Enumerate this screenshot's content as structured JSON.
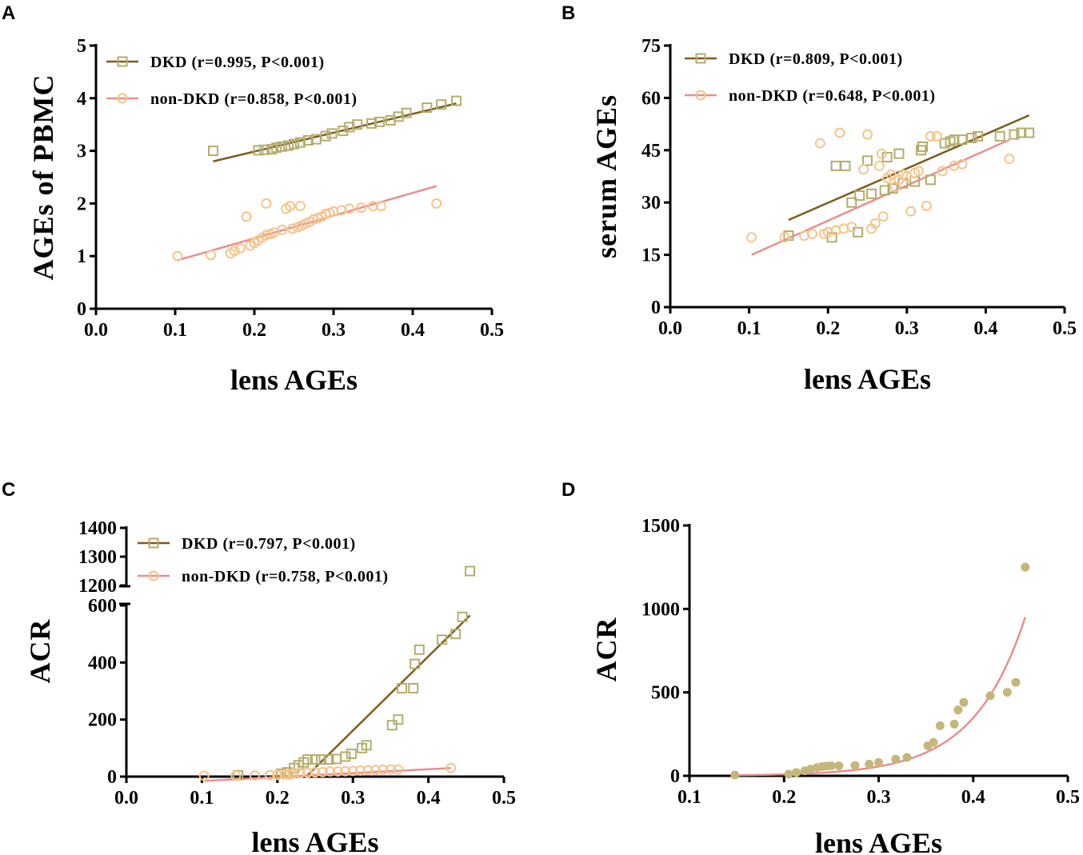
{
  "colors": {
    "dkd_marker": "#b5ad6e",
    "dkd_line": "#7d5c1c",
    "nondkd_marker": "#f6c48c",
    "nondkd_line": "#ea8e8e",
    "filled_marker": "#c4b77a"
  },
  "chart_data": [
    {
      "panel": "A",
      "type": "scatter",
      "title": "",
      "xlabel": "lens AGEs",
      "ylabel": "AGEs of PBMC",
      "xlim": [
        0.0,
        0.5
      ],
      "ylim": [
        0,
        5
      ],
      "xticks": [
        "0.0",
        "0.1",
        "0.2",
        "0.3",
        "0.4",
        "0.5"
      ],
      "yticks": [
        "0",
        "1",
        "2",
        "3",
        "4",
        "5"
      ],
      "legend_position": "top-left",
      "series": [
        {
          "name": "DKD (r=0.995, P<0.001)",
          "marker": "open-square",
          "points": [
            [
              0.148,
              3.0
            ],
            [
              0.205,
              3.01
            ],
            [
              0.213,
              3.02
            ],
            [
              0.222,
              3.03
            ],
            [
              0.228,
              3.06
            ],
            [
              0.235,
              3.08
            ],
            [
              0.243,
              3.1
            ],
            [
              0.25,
              3.13
            ],
            [
              0.258,
              3.16
            ],
            [
              0.268,
              3.2
            ],
            [
              0.278,
              3.22
            ],
            [
              0.29,
              3.28
            ],
            [
              0.298,
              3.33
            ],
            [
              0.312,
              3.38
            ],
            [
              0.32,
              3.45
            ],
            [
              0.33,
              3.5
            ],
            [
              0.348,
              3.52
            ],
            [
              0.358,
              3.55
            ],
            [
              0.372,
              3.58
            ],
            [
              0.382,
              3.65
            ],
            [
              0.392,
              3.72
            ],
            [
              0.418,
              3.82
            ],
            [
              0.436,
              3.88
            ],
            [
              0.455,
              3.95
            ]
          ],
          "fit": [
            [
              0.148,
              2.8
            ],
            [
              0.455,
              3.9
            ]
          ]
        },
        {
          "name": "non-DKD (r=0.858, P<0.001)",
          "marker": "open-circle",
          "points": [
            [
              0.103,
              1.0
            ],
            [
              0.145,
              1.02
            ],
            [
              0.17,
              1.05
            ],
            [
              0.175,
              1.1
            ],
            [
              0.182,
              1.15
            ],
            [
              0.19,
              1.75
            ],
            [
              0.195,
              1.2
            ],
            [
              0.2,
              1.25
            ],
            [
              0.205,
              1.3
            ],
            [
              0.21,
              1.35
            ],
            [
              0.215,
              1.4
            ],
            [
              0.215,
              2.0
            ],
            [
              0.22,
              1.42
            ],
            [
              0.225,
              1.45
            ],
            [
              0.235,
              1.5
            ],
            [
              0.24,
              1.9
            ],
            [
              0.245,
              1.95
            ],
            [
              0.248,
              1.52
            ],
            [
              0.255,
              1.55
            ],
            [
              0.258,
              1.95
            ],
            [
              0.26,
              1.58
            ],
            [
              0.265,
              1.62
            ],
            [
              0.27,
              1.65
            ],
            [
              0.275,
              1.7
            ],
            [
              0.28,
              1.72
            ],
            [
              0.285,
              1.75
            ],
            [
              0.29,
              1.8
            ],
            [
              0.295,
              1.82
            ],
            [
              0.3,
              1.85
            ],
            [
              0.31,
              1.87
            ],
            [
              0.32,
              1.9
            ],
            [
              0.335,
              1.92
            ],
            [
              0.35,
              1.95
            ],
            [
              0.36,
              1.95
            ],
            [
              0.43,
              2.0
            ]
          ],
          "fit": [
            [
              0.103,
              0.92
            ],
            [
              0.43,
              2.33
            ]
          ]
        }
      ]
    },
    {
      "panel": "B",
      "type": "scatter",
      "title": "",
      "xlabel": "lens AGEs",
      "ylabel": "serum AGEs",
      "xlim": [
        0.0,
        0.5
      ],
      "ylim": [
        0,
        75
      ],
      "xticks": [
        "0.0",
        "0.1",
        "0.2",
        "0.3",
        "0.4",
        "0.5"
      ],
      "yticks": [
        "0",
        "15",
        "30",
        "45",
        "60",
        "75"
      ],
      "legend_position": "top-left",
      "series": [
        {
          "name": "DKD (r=0.809, P<0.001)",
          "marker": "open-square",
          "points": [
            [
              0.15,
              20.5
            ],
            [
              0.205,
              20.0
            ],
            [
              0.21,
              40.5
            ],
            [
              0.222,
              40.5
            ],
            [
              0.23,
              30.0
            ],
            [
              0.238,
              21.5
            ],
            [
              0.24,
              32.0
            ],
            [
              0.25,
              42.0
            ],
            [
              0.255,
              32.5
            ],
            [
              0.272,
              33.5
            ],
            [
              0.275,
              43.0
            ],
            [
              0.282,
              34.0
            ],
            [
              0.29,
              44.0
            ],
            [
              0.295,
              35.5
            ],
            [
              0.31,
              36.0
            ],
            [
              0.318,
              45.0
            ],
            [
              0.32,
              46.0
            ],
            [
              0.33,
              36.5
            ],
            [
              0.348,
              47.0
            ],
            [
              0.355,
              47.5
            ],
            [
              0.36,
              48.0
            ],
            [
              0.37,
              48.0
            ],
            [
              0.382,
              48.5
            ],
            [
              0.39,
              49.0
            ],
            [
              0.418,
              49.0
            ],
            [
              0.436,
              49.5
            ],
            [
              0.445,
              50.0
            ],
            [
              0.455,
              50.0
            ]
          ],
          "fit": [
            [
              0.15,
              25.0
            ],
            [
              0.455,
              55.0
            ]
          ]
        },
        {
          "name": "non-DKD (r=0.648, P<0.001)",
          "marker": "open-circle",
          "points": [
            [
              0.103,
              20.0
            ],
            [
              0.145,
              20.0
            ],
            [
              0.17,
              20.5
            ],
            [
              0.18,
              21.0
            ],
            [
              0.19,
              47.0
            ],
            [
              0.195,
              21.0
            ],
            [
              0.2,
              21.5
            ],
            [
              0.21,
              22.0
            ],
            [
              0.215,
              50.0
            ],
            [
              0.22,
              22.5
            ],
            [
              0.23,
              23.0
            ],
            [
              0.245,
              39.5
            ],
            [
              0.25,
              49.5
            ],
            [
              0.255,
              22.5
            ],
            [
              0.26,
              24.0
            ],
            [
              0.265,
              40.5
            ],
            [
              0.268,
              44.0
            ],
            [
              0.27,
              26.0
            ],
            [
              0.275,
              37.0
            ],
            [
              0.28,
              38.0
            ],
            [
              0.285,
              34.5
            ],
            [
              0.29,
              36.5
            ],
            [
              0.295,
              38.0
            ],
            [
              0.3,
              37.5
            ],
            [
              0.305,
              27.5
            ],
            [
              0.31,
              38.5
            ],
            [
              0.315,
              39.0
            ],
            [
              0.325,
              29.0
            ],
            [
              0.33,
              49.0
            ],
            [
              0.338,
              49.0
            ],
            [
              0.345,
              39.0
            ],
            [
              0.36,
              40.5
            ],
            [
              0.37,
              41.0
            ],
            [
              0.43,
              42.5
            ]
          ],
          "fit": [
            [
              0.103,
              15.0
            ],
            [
              0.43,
              48.0
            ]
          ]
        }
      ]
    },
    {
      "panel": "C",
      "type": "scatter",
      "title": "",
      "xlabel": "lens AGEs",
      "ylabel": "ACR",
      "xlim": [
        0.0,
        0.5
      ],
      "ylim_lower": [
        0,
        600
      ],
      "ylim_upper": [
        1200,
        1400
      ],
      "axis_break": true,
      "xticks": [
        "0.0",
        "0.1",
        "0.2",
        "0.3",
        "0.4",
        "0.5"
      ],
      "yticks_lower": [
        "0",
        "200",
        "400",
        "600"
      ],
      "yticks_upper": [
        "1200",
        "1300",
        "1400"
      ],
      "legend_position": "top-left",
      "series": [
        {
          "name": "DKD (r=0.797, P<0.001)",
          "marker": "open-square",
          "points": [
            [
              0.148,
              5
            ],
            [
              0.205,
              10
            ],
            [
              0.213,
              15
            ],
            [
              0.222,
              30
            ],
            [
              0.228,
              40
            ],
            [
              0.235,
              50
            ],
            [
              0.24,
              60
            ],
            [
              0.25,
              60
            ],
            [
              0.258,
              60
            ],
            [
              0.268,
              60
            ],
            [
              0.278,
              62
            ],
            [
              0.29,
              70
            ],
            [
              0.298,
              80
            ],
            [
              0.312,
              100
            ],
            [
              0.318,
              110
            ],
            [
              0.352,
              180
            ],
            [
              0.36,
              200
            ],
            [
              0.365,
              310
            ],
            [
              0.38,
              310
            ],
            [
              0.382,
              395
            ],
            [
              0.388,
              445
            ],
            [
              0.418,
              480
            ],
            [
              0.436,
              500
            ],
            [
              0.445,
              560
            ],
            [
              0.455,
              1250
            ]
          ],
          "fit": [
            [
              0.238,
              0
            ],
            [
              0.455,
              565
            ]
          ]
        },
        {
          "name": "non-DKD (r=0.758, P<0.001)",
          "marker": "open-circle",
          "points": [
            [
              0.103,
              3
            ],
            [
              0.145,
              3
            ],
            [
              0.17,
              4
            ],
            [
              0.19,
              5
            ],
            [
              0.2,
              6
            ],
            [
              0.21,
              8
            ],
            [
              0.215,
              7
            ],
            [
              0.22,
              10
            ],
            [
              0.23,
              12
            ],
            [
              0.24,
              14
            ],
            [
              0.25,
              15
            ],
            [
              0.26,
              16
            ],
            [
              0.27,
              18
            ],
            [
              0.28,
              18
            ],
            [
              0.29,
              19
            ],
            [
              0.3,
              20
            ],
            [
              0.31,
              21
            ],
            [
              0.32,
              22
            ],
            [
              0.33,
              23
            ],
            [
              0.34,
              24
            ],
            [
              0.35,
              25
            ],
            [
              0.36,
              25
            ],
            [
              0.43,
              30
            ]
          ],
          "fit": [
            [
              0.103,
              -15
            ],
            [
              0.43,
              30
            ]
          ]
        }
      ]
    },
    {
      "panel": "D",
      "type": "scatter",
      "title": "",
      "xlabel": "lens AGEs",
      "ylabel": "ACR",
      "xlim": [
        0.1,
        0.5
      ],
      "ylim": [
        0,
        1500
      ],
      "xticks": [
        "0.1",
        "0.2",
        "0.3",
        "0.4",
        "0.5"
      ],
      "yticks": [
        "0",
        "500",
        "1000",
        "1500"
      ],
      "series": [
        {
          "name": "ACR",
          "marker": "filled-circle",
          "points": [
            [
              0.148,
              5
            ],
            [
              0.205,
              10
            ],
            [
              0.213,
              20
            ],
            [
              0.222,
              30
            ],
            [
              0.228,
              40
            ],
            [
              0.235,
              50
            ],
            [
              0.24,
              55
            ],
            [
              0.245,
              58
            ],
            [
              0.25,
              60
            ],
            [
              0.258,
              60
            ],
            [
              0.275,
              62
            ],
            [
              0.29,
              70
            ],
            [
              0.3,
              80
            ],
            [
              0.318,
              100
            ],
            [
              0.33,
              110
            ],
            [
              0.352,
              180
            ],
            [
              0.358,
              200
            ],
            [
              0.365,
              300
            ],
            [
              0.38,
              310
            ],
            [
              0.384,
              395
            ],
            [
              0.39,
              440
            ],
            [
              0.418,
              480
            ],
            [
              0.436,
              500
            ],
            [
              0.445,
              560
            ],
            [
              0.455,
              1250
            ]
          ],
          "fit_exponential": {
            "a": 0.23,
            "b": 18.3,
            "x_range": [
              0.148,
              0.455
            ]
          }
        }
      ]
    }
  ],
  "panel_letters": [
    "A",
    "B",
    "C",
    "D"
  ]
}
